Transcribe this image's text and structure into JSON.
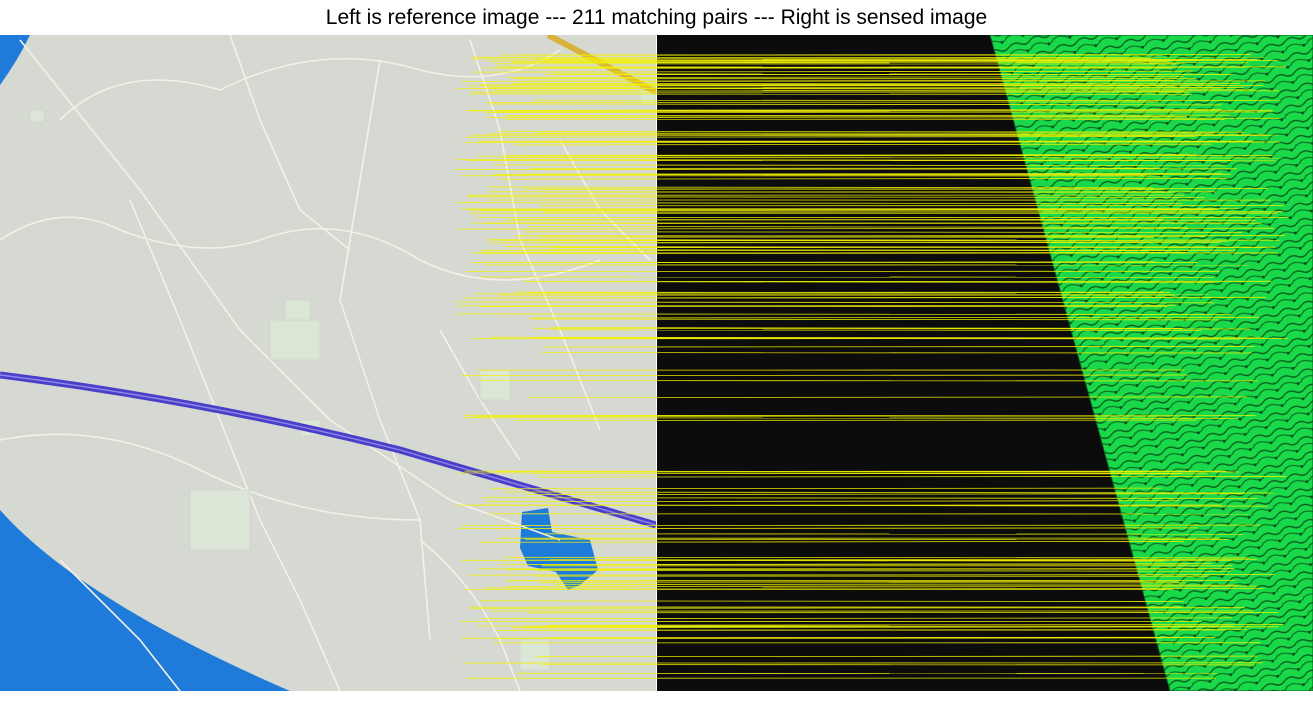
{
  "title": "Left is reference image --- 211 matching pairs --- Right is sensed image",
  "match_count": 211,
  "colors": {
    "map_background": "#d6d8d2",
    "water": "#1f7bd9",
    "railway": "#4a3fc9",
    "road": "#f4f1e6",
    "built_area": "#dce6d6",
    "sensed_background": "#0c0c0c",
    "terrain": "#19d84a",
    "match_line": "#f2f200",
    "highway": "#d9b23c"
  },
  "icons": {
    "reference-image": "street-map",
    "sensed-image": "green-relief-raster"
  }
}
